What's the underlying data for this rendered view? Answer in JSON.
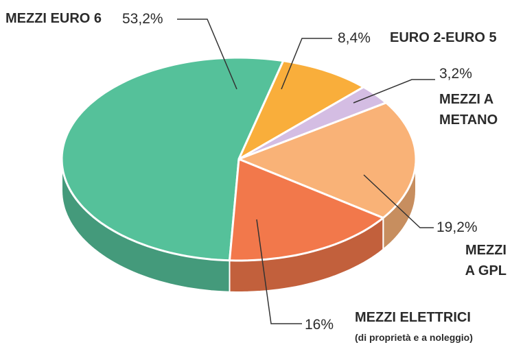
{
  "chart_data": {
    "type": "pie",
    "categories": [
      "MEZZI EURO 6",
      "EURO 2-EURO 5",
      "MEZZI A METANO",
      "MEZZI A GPL",
      "MEZZI ELETTRICI"
    ],
    "values": [
      53.2,
      8.4,
      3.2,
      19.2,
      16
    ],
    "value_labels": [
      "53,2%",
      "8,4%",
      "3,2%",
      "19,2%",
      "16%"
    ],
    "colors": [
      "#55c19a",
      "#f9ae3b",
      "#d4bde3",
      "#f9b277",
      "#f2784b"
    ],
    "annotations": [
      "(di proprietà e a noleggio)"
    ]
  }
}
